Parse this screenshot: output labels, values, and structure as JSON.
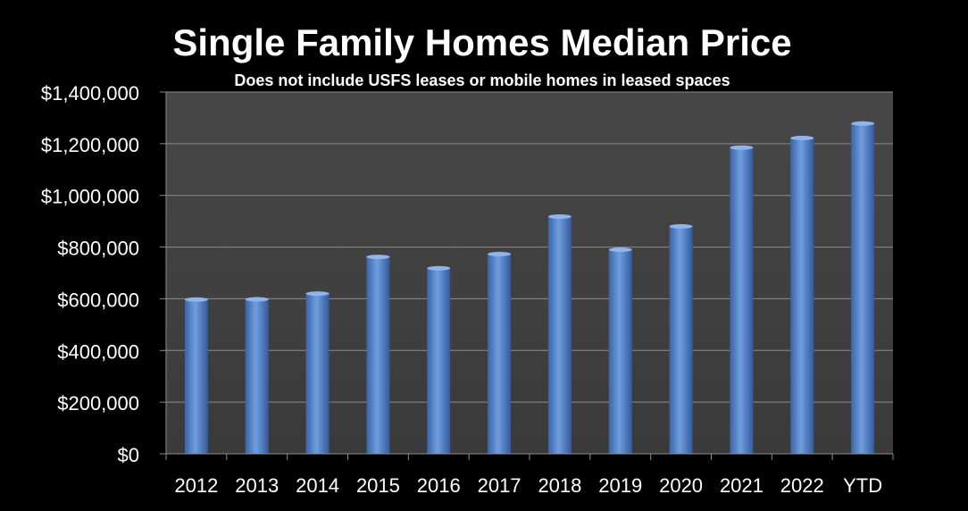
{
  "chart_data": {
    "type": "bar",
    "title": "Single Family Homes Median Price",
    "subtitle": "Does not include USFS leases or mobile homes in leased spaces",
    "categories": [
      "2012",
      "2013",
      "2014",
      "2015",
      "2016",
      "2017",
      "2018",
      "2019",
      "2020",
      "2021",
      "2022",
      "YTD"
    ],
    "values": [
      597000,
      598000,
      620000,
      762000,
      718000,
      773000,
      918000,
      790000,
      880000,
      1185000,
      1222000,
      1278000
    ],
    "ylim": [
      0,
      1400000
    ],
    "yticks": [
      0,
      200000,
      400000,
      600000,
      800000,
      1000000,
      1200000,
      1400000
    ],
    "ytick_labels": [
      "$0",
      "$200,000",
      "$400,000",
      "$600,000",
      "$800,000",
      "$1,000,000",
      "$1,200,000",
      "$1,400,000"
    ],
    "xlabel": "",
    "ylabel": "",
    "grid": true,
    "colors": {
      "background": "#000000",
      "plot_area": "#404040",
      "bar": "#4f81bd",
      "grid": "#8c8c8c",
      "text": "#ffffff"
    }
  }
}
